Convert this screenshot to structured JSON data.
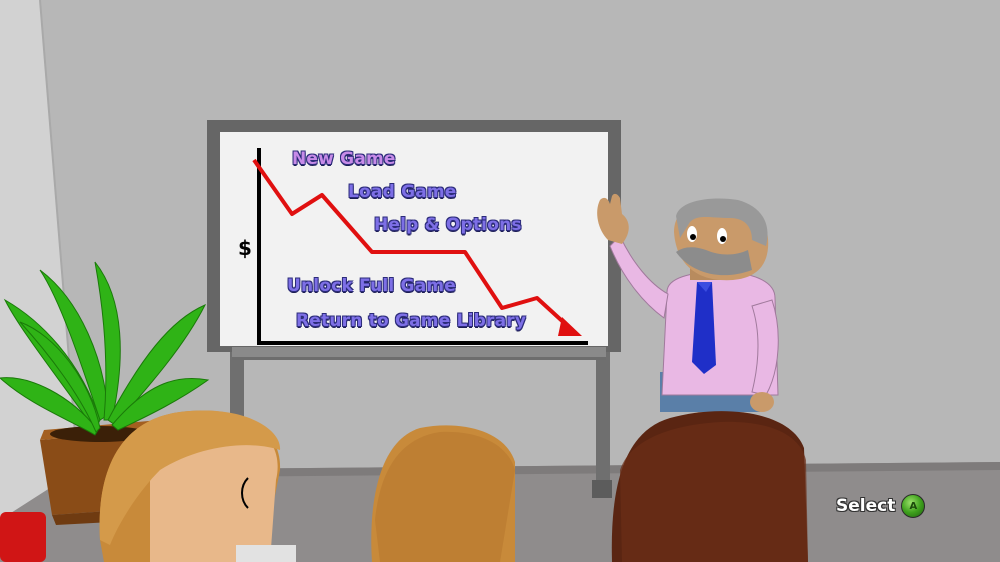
{
  "menu": {
    "items": [
      {
        "label": "New Game",
        "selected": true
      },
      {
        "label": "Load Game",
        "selected": false
      },
      {
        "label": "Help & Options",
        "selected": false
      },
      {
        "label": "Unlock Full Game",
        "selected": false
      },
      {
        "label": "Return to Game Library",
        "selected": false
      }
    ]
  },
  "whiteboard": {
    "axis_symbol": "$"
  },
  "prompt": {
    "select_label": "Select",
    "button_icon": "a-button-icon"
  },
  "colors": {
    "menu_text": "#7d6fe6",
    "menu_selected": "#c78be8",
    "trend_line": "#e01010"
  }
}
